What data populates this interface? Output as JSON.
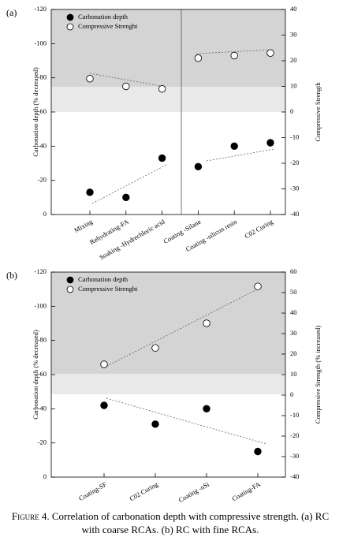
{
  "chart_data": [
    {
      "type": "scatter",
      "label": "(a)",
      "y_label": "Carbonation depth (% decreased)",
      "y2_label": "Compressive Strength",
      "categories": [
        "Mixing",
        "Rehydrating-FA",
        "Soaking -Hydrechloric acid",
        "Coating -Silane",
        "Coating -silicon resin",
        "C02 Curing"
      ],
      "ylim": [
        0,
        -120
      ],
      "yticks": [
        -120,
        -100,
        -80,
        -60,
        -40,
        -20,
        0
      ],
      "y2lim": [
        -40,
        40
      ],
      "y2ticks": [
        40,
        30,
        20,
        10,
        0,
        -10,
        -20,
        -30,
        -40
      ],
      "series": [
        {
          "name": "Carbonation depth",
          "color": "#000000",
          "values": [
            -13,
            -10,
            -33,
            -28,
            -40,
            -42
          ]
        },
        {
          "name": "Compressive Strenght",
          "color": "#ffffff",
          "axis": "y2",
          "values": [
            13,
            10,
            9,
            21,
            22,
            23
          ]
        }
      ]
    },
    {
      "type": "scatter",
      "label": "(b)",
      "y_label": "Carbonation depth (% decreased)",
      "y2_label": "Compressive Strength (% increased)",
      "categories": [
        "Coating-SF",
        "C02 Curing",
        "Coating -nSi",
        "Coating-FA"
      ],
      "ylim": [
        0,
        -120
      ],
      "yticks": [
        -120,
        -100,
        -80,
        -60,
        -40,
        -20,
        0
      ],
      "y2lim": [
        -40,
        60
      ],
      "y2ticks": [
        60,
        50,
        40,
        30,
        20,
        10,
        0,
        -10,
        -20,
        -30,
        -40
      ],
      "series": [
        {
          "name": "Carbonation depth",
          "color": "#000000",
          "values": [
            -42,
            -31,
            -40,
            -15
          ]
        },
        {
          "name": "Compressive Strenght",
          "color": "#ffffff",
          "axis": "y2",
          "values": [
            15,
            23,
            35,
            53
          ]
        }
      ]
    }
  ],
  "caption_label": "Figure 4.",
  "caption_text": "Correlation of carbonation depth with compressive strength. (a) RC with coarse RCAs. (b) RC with fine RCAs."
}
